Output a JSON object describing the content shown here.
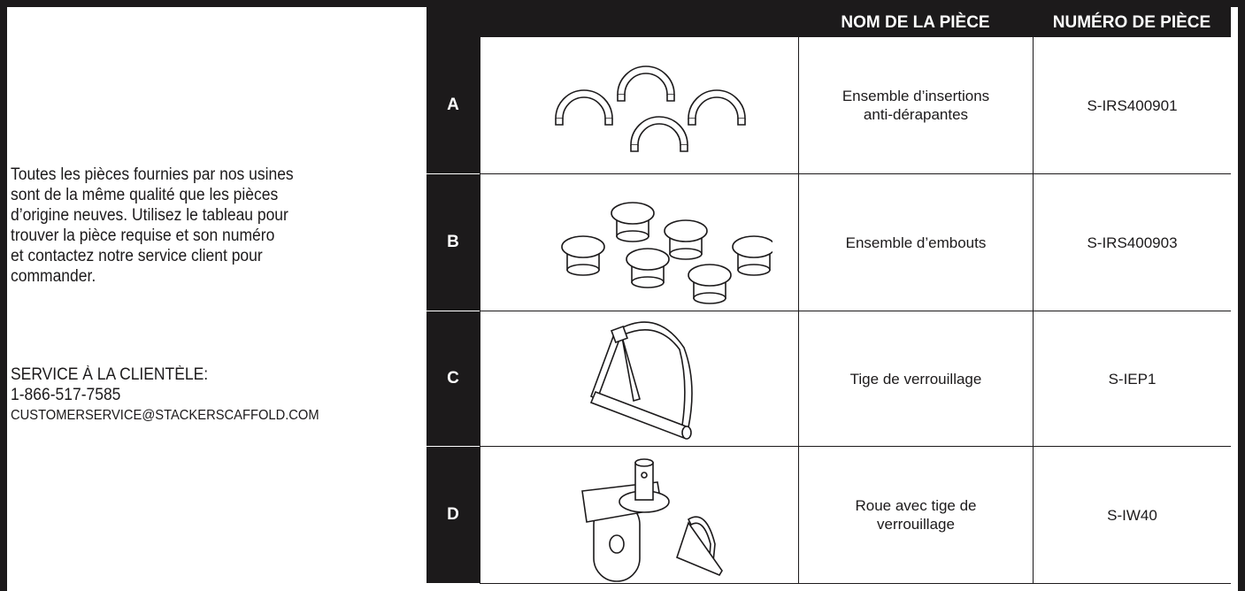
{
  "intro": {
    "lines": [
      "Toutes les pièces fournies par nos usines",
      "sont de la même qualité que les pièces",
      "d’origine neuves. Utilisez le tableau pour",
      "trouver la pièce requise et son numéro",
      "et contactez notre service client pour",
      "commander."
    ]
  },
  "contact": {
    "label": "SERVICE À LA CLIENTÈLE:",
    "phone": "1-866-517-7585",
    "email": "CUSTOMERSERVICE@STACKERSCAFFOLD.COM"
  },
  "table": {
    "header": {
      "part_name": "NOM DE LA PIÈCE",
      "part_number": "NUMÉRO DE PIÈCE"
    },
    "rows": [
      {
        "letter": "A",
        "name": "Ensemble d’insertions anti-dérapantes",
        "number": "S-IRS400901"
      },
      {
        "letter": "B",
        "name": "Ensemble d’embouts",
        "number": "S-IRS400903"
      },
      {
        "letter": "C",
        "name": "Tige de verrouillage",
        "number": "S-IEP1"
      },
      {
        "letter": "D",
        "name": "Roue avec tige de verrouillage",
        "number": "S-IW40"
      }
    ]
  }
}
